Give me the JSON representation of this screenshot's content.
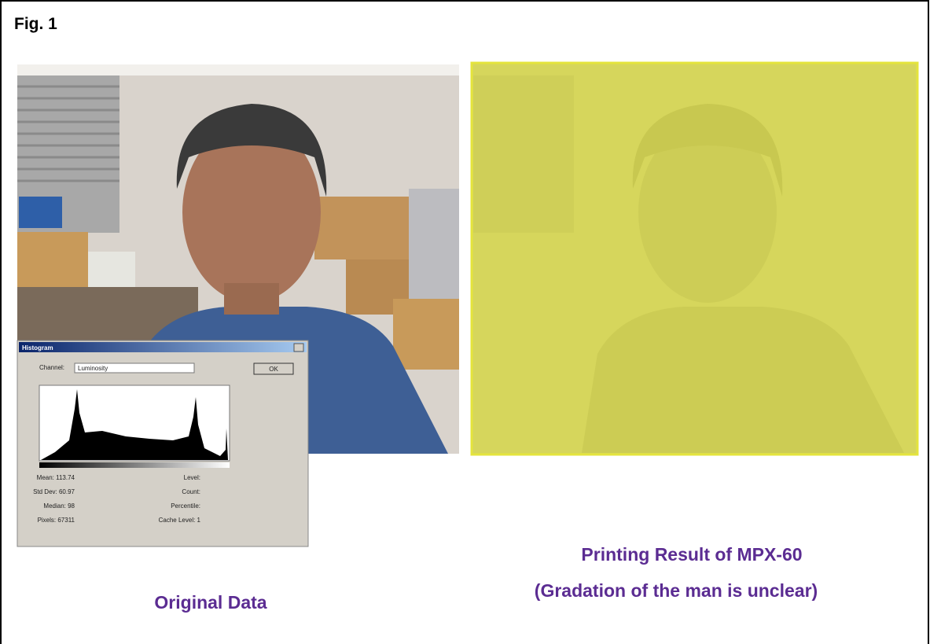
{
  "figure_label": "Fig. 1",
  "left_panel": {
    "caption": "Original Data",
    "histogram_dialog": {
      "title": "Histogram",
      "channel_label": "Channel:",
      "channel_value": "Luminosity",
      "ok_button": "OK",
      "stats_left": [
        "Mean: 113.74",
        "Std Dev: 60.97",
        "Median: 98",
        "Pixels: 67311"
      ],
      "stats_right": [
        "Level:",
        "Count:",
        "Percentile:",
        "Cache Level: 1"
      ]
    }
  },
  "right_panel": {
    "caption_lines": [
      "Printing Result of MPX-60",
      "(Gradation of the man is unclear)"
    ]
  }
}
